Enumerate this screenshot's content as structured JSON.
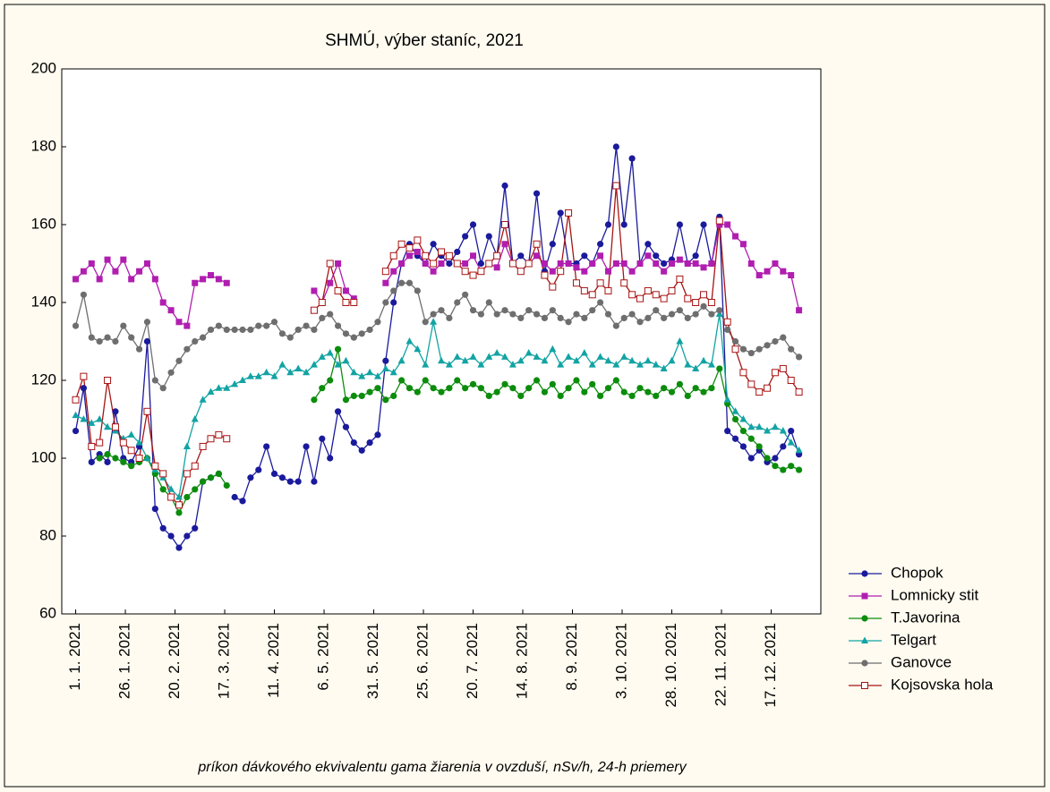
{
  "chart_data": {
    "type": "line",
    "title": "SHMÚ, výber staníc, 2021",
    "xlabel": "príkon dávkového ekvivalentu gama žiarenia v ovzduší, nSv/h, 24-h priemery",
    "x": [
      0,
      4,
      8,
      12,
      16,
      20,
      24,
      28,
      32,
      36,
      40,
      44,
      48,
      52,
      56,
      60,
      64,
      68,
      72,
      76,
      80,
      84,
      88,
      92,
      96,
      100,
      104,
      108,
      112,
      116,
      120,
      124,
      128,
      132,
      136,
      140,
      144,
      148,
      152,
      156,
      160,
      164,
      168,
      172,
      176,
      180,
      184,
      188,
      192,
      196,
      200,
      204,
      208,
      212,
      216,
      220,
      224,
      228,
      232,
      236,
      240,
      244,
      248,
      252,
      256,
      260,
      264,
      268,
      272,
      276,
      280,
      284,
      288,
      292,
      296,
      300,
      304,
      308,
      312,
      316,
      320,
      324,
      328,
      332,
      336,
      340,
      344,
      348,
      352,
      356,
      360,
      364
    ],
    "xlim": [
      -7,
      375
    ],
    "xticks": [
      {
        "value": 0,
        "label": "1. 1. 2021"
      },
      {
        "value": 25,
        "label": "26. 1. 2021"
      },
      {
        "value": 50,
        "label": "20. 2. 2021"
      },
      {
        "value": 75,
        "label": "17. 3. 2021"
      },
      {
        "value": 100,
        "label": "11. 4. 2021"
      },
      {
        "value": 125,
        "label": "6. 5. 2021"
      },
      {
        "value": 150,
        "label": "31. 5. 2021"
      },
      {
        "value": 175,
        "label": "25. 6. 2021"
      },
      {
        "value": 200,
        "label": "20. 7. 2021"
      },
      {
        "value": 225,
        "label": "14. 8. 2021"
      },
      {
        "value": 250,
        "label": "8. 9. 2021"
      },
      {
        "value": 275,
        "label": "3. 10. 2021"
      },
      {
        "value": 300,
        "label": "28. 10. 2021"
      },
      {
        "value": 325,
        "label": "22. 11. 2021"
      },
      {
        "value": 350,
        "label": "17. 12. 2021"
      }
    ],
    "ylim": [
      60,
      200
    ],
    "yticks": [
      60,
      80,
      100,
      120,
      140,
      160,
      180,
      200
    ],
    "legend": "right",
    "series": [
      {
        "name": "Chopok",
        "color": "#1a1a9c",
        "marker": "circle",
        "values": [
          107,
          118,
          99,
          101,
          99,
          112,
          100,
          99,
          103,
          130,
          87,
          82,
          80,
          77,
          80,
          82,
          94,
          95,
          96,
          null,
          90,
          89,
          95,
          97,
          103,
          96,
          95,
          94,
          94,
          103,
          94,
          105,
          100,
          112,
          108,
          104,
          102,
          104,
          106,
          125,
          140,
          150,
          155,
          152,
          150,
          155,
          152,
          150,
          153,
          157,
          160,
          150,
          157,
          152,
          170,
          150,
          152,
          150,
          168,
          148,
          155,
          163,
          150,
          150,
          152,
          150,
          155,
          160,
          180,
          160,
          177,
          150,
          155,
          152,
          150,
          151,
          160,
          150,
          152,
          160,
          150,
          162,
          107,
          105,
          103,
          100,
          102,
          99,
          100,
          103,
          107,
          101
        ]
      },
      {
        "name": "Lomnicky stit",
        "color": "#b01eb0",
        "marker": "square",
        "values": [
          146,
          148,
          150,
          146,
          151,
          148,
          151,
          146,
          148,
          150,
          146,
          140,
          138,
          135,
          134,
          145,
          146,
          147,
          146,
          145,
          null,
          null,
          null,
          null,
          null,
          null,
          null,
          null,
          null,
          null,
          143,
          140,
          145,
          150,
          143,
          141,
          null,
          null,
          null,
          145,
          148,
          150,
          152,
          153,
          150,
          148,
          150,
          152,
          150,
          150,
          152,
          148,
          150,
          149,
          155,
          150,
          148,
          150,
          152,
          150,
          148,
          150,
          150,
          149,
          148,
          150,
          152,
          148,
          150,
          150,
          148,
          150,
          152,
          150,
          148,
          150,
          151,
          150,
          150,
          149,
          150,
          160,
          160,
          157,
          155,
          150,
          147,
          148,
          150,
          148,
          147,
          138
        ]
      },
      {
        "name": "T.Javorina",
        "color": "#0c8c0c",
        "marker": "circle",
        "values": [
          null,
          null,
          null,
          100,
          101,
          100,
          99,
          98,
          99,
          100,
          96,
          92,
          90,
          86,
          90,
          92,
          94,
          95,
          96,
          93,
          null,
          null,
          null,
          null,
          null,
          null,
          null,
          null,
          null,
          null,
          115,
          118,
          120,
          128,
          115,
          116,
          116,
          117,
          118,
          115,
          116,
          120,
          118,
          117,
          120,
          118,
          117,
          118,
          120,
          118,
          119,
          118,
          116,
          117,
          119,
          118,
          116,
          118,
          120,
          117,
          119,
          116,
          118,
          120,
          117,
          119,
          116,
          118,
          120,
          117,
          116,
          118,
          117,
          116,
          118,
          117,
          119,
          116,
          118,
          117,
          118,
          123,
          114,
          110,
          107,
          105,
          103,
          100,
          98,
          97,
          98,
          97
        ]
      },
      {
        "name": "Telgart",
        "color": "#12a3a3",
        "marker": "triangle",
        "values": [
          111,
          110,
          109,
          110,
          108,
          107,
          105,
          106,
          104,
          100,
          97,
          95,
          92,
          90,
          103,
          110,
          115,
          117,
          118,
          118,
          119,
          120,
          121,
          121,
          122,
          121,
          124,
          122,
          123,
          122,
          124,
          126,
          127,
          124,
          125,
          122,
          121,
          122,
          121,
          123,
          122,
          125,
          130,
          128,
          124,
          135,
          125,
          124,
          126,
          125,
          126,
          124,
          126,
          127,
          126,
          124,
          125,
          127,
          126,
          125,
          128,
          124,
          126,
          125,
          127,
          124,
          126,
          125,
          124,
          126,
          125,
          124,
          125,
          124,
          123,
          125,
          130,
          124,
          123,
          125,
          124,
          137,
          115,
          112,
          110,
          108,
          108,
          107,
          108,
          107,
          104,
          102
        ]
      },
      {
        "name": "Ganovce",
        "color": "#6e6e6e",
        "marker": "circle",
        "values": [
          134,
          142,
          131,
          130,
          131,
          130,
          134,
          131,
          128,
          135,
          120,
          118,
          122,
          125,
          128,
          130,
          131,
          133,
          134,
          133,
          133,
          133,
          133,
          134,
          134,
          135,
          132,
          131,
          133,
          134,
          133,
          136,
          137,
          134,
          132,
          131,
          132,
          133,
          135,
          140,
          143,
          145,
          145,
          143,
          135,
          137,
          138,
          136,
          140,
          142,
          138,
          137,
          140,
          137,
          138,
          137,
          136,
          138,
          137,
          136,
          138,
          136,
          135,
          137,
          136,
          138,
          140,
          137,
          134,
          136,
          137,
          135,
          136,
          138,
          136,
          137,
          138,
          136,
          137,
          139,
          137,
          138,
          133,
          130,
          128,
          127,
          128,
          129,
          130,
          131,
          128,
          126
        ]
      },
      {
        "name": "Kojsovska hola",
        "color": "#a81414",
        "marker": "open-square",
        "values": [
          115,
          121,
          103,
          104,
          120,
          108,
          104,
          102,
          100,
          112,
          98,
          96,
          90,
          88,
          96,
          98,
          103,
          105,
          106,
          105,
          null,
          null,
          null,
          null,
          null,
          null,
          null,
          null,
          null,
          null,
          138,
          140,
          150,
          143,
          140,
          140,
          null,
          null,
          null,
          148,
          152,
          155,
          154,
          156,
          152,
          150,
          153,
          152,
          150,
          148,
          147,
          148,
          150,
          152,
          160,
          150,
          148,
          150,
          155,
          147,
          144,
          148,
          163,
          145,
          143,
          142,
          145,
          143,
          170,
          145,
          142,
          141,
          143,
          142,
          141,
          143,
          146,
          141,
          140,
          142,
          140,
          161,
          135,
          128,
          122,
          119,
          117,
          118,
          122,
          123,
          120,
          117
        ]
      }
    ]
  }
}
